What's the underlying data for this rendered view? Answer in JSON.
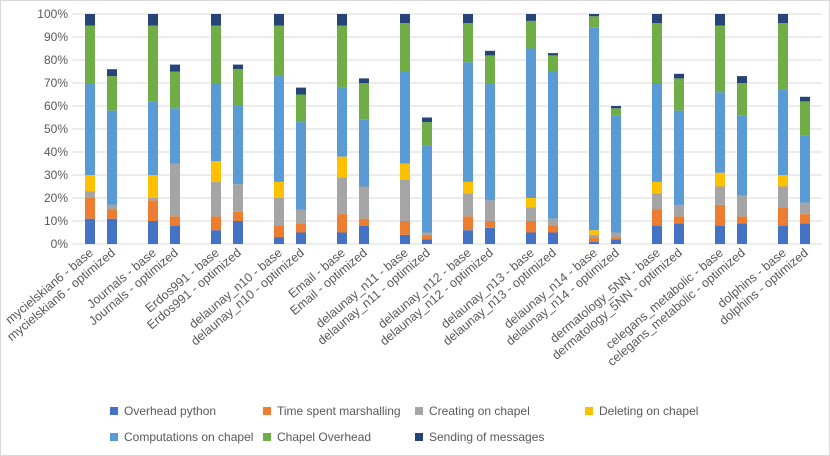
{
  "chart_data": {
    "type": "stacked_bar",
    "categories": [
      "mycielskian6 - base",
      "mycielskian6 - optimized",
      "Journals - base",
      "Journals - optimized",
      "Erdos991 - base",
      "Erdos991 - optimized",
      "delaunay_n10 - base",
      "delaunay_n10 - optimized",
      "Email - base",
      "Email - optimized",
      "delaunay_n11 - base",
      "delaunay_n11 - optimized",
      "delaunay_n12 - base",
      "delaunay_n12 - optimized",
      "delaunay_n13 - base",
      "delaunay_n13 - optimized",
      "delaunay_n14 - base",
      "delaunay_n14 - optimized",
      "dermatology_5NN - base",
      "dermatology_5NN - optimized",
      "celegans_metabolic - base",
      "celegans_metabolic - optimized",
      "dolphins - base",
      "dolphins - optimized"
    ],
    "series": [
      {
        "name": "Overhead python",
        "color": "#4472c4",
        "values": [
          11,
          11,
          10,
          8,
          6,
          10,
          3,
          5,
          5,
          8,
          4,
          2,
          6,
          7,
          5,
          5,
          1,
          2,
          8,
          9,
          8,
          9,
          8,
          9
        ]
      },
      {
        "name": "Time spent marshalling",
        "color": "#ed7d31",
        "values": [
          9,
          4,
          9,
          4,
          6,
          4,
          5,
          4,
          8,
          3,
          6,
          2,
          6,
          3,
          5,
          3,
          2,
          1,
          7,
          3,
          9,
          3,
          8,
          4
        ]
      },
      {
        "name": "Creating on chapel",
        "color": "#a5a5a5",
        "values": [
          3,
          2,
          1,
          23,
          15,
          12,
          12,
          6,
          16,
          14,
          18,
          1,
          10,
          9,
          6,
          3,
          1,
          2,
          7,
          5,
          8,
          9,
          9,
          5
        ]
      },
      {
        "name": "Deleting on chapel",
        "color": "#ffc000",
        "values": [
          7,
          0,
          10,
          0,
          9,
          0,
          7,
          0,
          9,
          0,
          7,
          0,
          5,
          0,
          4,
          0,
          2,
          0,
          5,
          0,
          6,
          0,
          5,
          0
        ]
      },
      {
        "name": "Computations on chapel",
        "color": "#5b9bd5",
        "values": [
          40,
          41,
          32,
          24,
          34,
          34,
          46,
          38,
          30,
          29,
          40,
          38,
          52,
          51,
          65,
          64,
          88,
          51,
          43,
          41,
          35,
          35,
          37,
          29
        ]
      },
      {
        "name": "Chapel Overhead",
        "color": "#70ad47",
        "values": [
          25,
          15,
          33,
          16,
          25,
          16,
          22,
          12,
          27,
          16,
          21,
          10,
          17,
          12,
          12,
          7,
          5,
          3,
          26,
          14,
          29,
          14,
          29,
          15
        ]
      },
      {
        "name": "Sending of messages",
        "color": "#264478",
        "values": [
          5,
          3,
          5,
          3,
          5,
          2,
          5,
          3,
          5,
          2,
          4,
          2,
          4,
          2,
          3,
          1,
          1,
          1,
          4,
          2,
          5,
          3,
          4,
          2
        ]
      }
    ],
    "ylim": [
      0,
      100
    ],
    "yticks": [
      {
        "value": 0,
        "label": "0%"
      },
      {
        "value": 10,
        "label": "10%"
      },
      {
        "value": 20,
        "label": "20%"
      },
      {
        "value": 30,
        "label": "30%"
      },
      {
        "value": 40,
        "label": "40%"
      },
      {
        "value": 50,
        "label": "50%"
      },
      {
        "value": 60,
        "label": "60%"
      },
      {
        "value": 70,
        "label": "70%"
      },
      {
        "value": 80,
        "label": "80%"
      },
      {
        "value": 90,
        "label": "90%"
      },
      {
        "value": 100,
        "label": "100%"
      }
    ],
    "grid": true,
    "legend": "bottom"
  }
}
